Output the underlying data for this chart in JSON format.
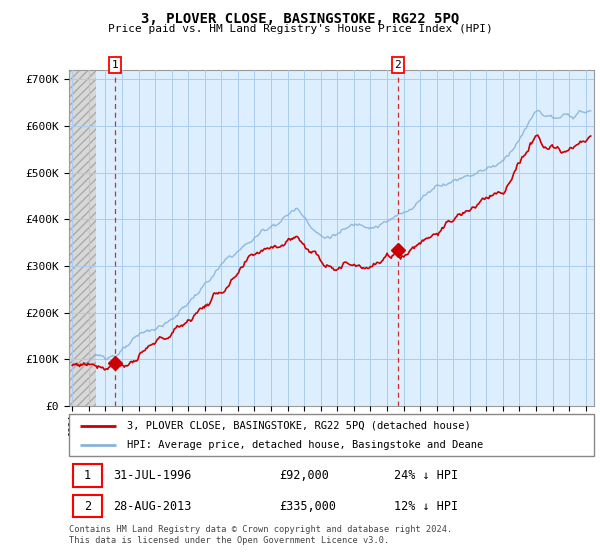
{
  "title": "3, PLOVER CLOSE, BASINGSTOKE, RG22 5PQ",
  "subtitle": "Price paid vs. HM Land Registry's House Price Index (HPI)",
  "ylim": [
    0,
    720000
  ],
  "yticks": [
    0,
    100000,
    200000,
    300000,
    400000,
    500000,
    600000,
    700000
  ],
  "ytick_labels": [
    "£0",
    "£100K",
    "£200K",
    "£300K",
    "£400K",
    "£500K",
    "£600K",
    "£700K"
  ],
  "hpi_color": "#89b4d9",
  "price_color": "#cc0000",
  "sale1_year": 1996.58,
  "sale1_price": 92000,
  "sale2_year": 2013.66,
  "sale2_price": 335000,
  "legend1": "3, PLOVER CLOSE, BASINGSTOKE, RG22 5PQ (detached house)",
  "legend2": "HPI: Average price, detached house, Basingstoke and Deane",
  "footnote": "Contains HM Land Registry data © Crown copyright and database right 2024.\nThis data is licensed under the Open Government Licence v3.0.",
  "chart_bg_color": "#ddeeff",
  "hatch_color": "#c8c8c8",
  "grid_color": "#aaccee",
  "hatch_end_year": 1995.42,
  "xlim_start": 1993.8,
  "xlim_end": 2025.5
}
